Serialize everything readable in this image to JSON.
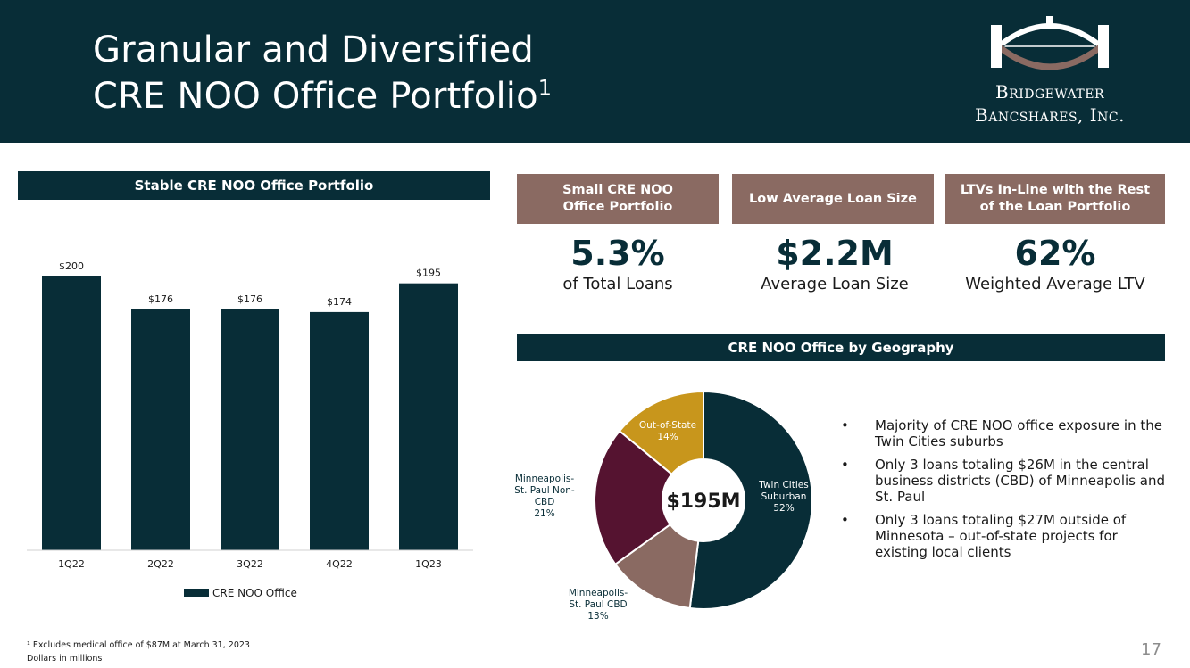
{
  "header": {
    "title_line1": "Granular and Diversified",
    "title_line2": "CRE NOO Office Portfolio",
    "title_sup": "1",
    "logo_line1": "Bridgewater",
    "logo_line2": "Bancshares, Inc."
  },
  "left_panel": {
    "title": "Stable CRE NOO Office Portfolio"
  },
  "kpis": [
    {
      "heading": "Small CRE NOO Office Portfolio",
      "value": "5.3%",
      "label": "of Total Loans"
    },
    {
      "heading": "Low Average Loan Size",
      "value": "$2.2M",
      "label": "Average Loan Size"
    },
    {
      "heading": "LTVs In-Line with the Rest of the Loan Portfolio",
      "value": "62%",
      "label": "Weighted Average LTV"
    }
  ],
  "geo_panel": {
    "title": "CRE NOO Office by Geography",
    "center_label": "$195M",
    "bullets": [
      "Majority of CRE NOO office exposure in the Twin Cities suburbs",
      "Only 3 loans totaling $26M in the central business districts (CBD) of Minneapolis and St. Paul",
      "Only 3 loans totaling $27M outside of Minnesota – out-of-state projects for existing local clients"
    ]
  },
  "chart_data": [
    {
      "type": "bar",
      "title": "Stable CRE NOO Office Portfolio",
      "categories": [
        "1Q22",
        "2Q22",
        "3Q22",
        "4Q22",
        "1Q23"
      ],
      "values": [
        200,
        176,
        176,
        174,
        195
      ],
      "data_labels": [
        "$200",
        "$176",
        "$176",
        "$174",
        "$195"
      ],
      "series_name": "CRE NOO Office",
      "ylim": [
        0,
        200
      ],
      "legend": "bottom",
      "color": "#082d37"
    },
    {
      "type": "pie",
      "title": "CRE NOO Office by Geography",
      "center_label": "$195M",
      "slices": [
        {
          "label": "Twin Cities Suburban",
          "display": [
            "Twin Cities",
            "Suburban",
            "52%"
          ],
          "value": 52,
          "color": "#082d37",
          "text_color": "#ffffff"
        },
        {
          "label": "Minneapolis-St. Paul CBD",
          "display": [
            "Minneapolis-",
            "St. Paul CBD",
            "13%"
          ],
          "value": 13,
          "color": "#8a6a62",
          "text_color": "#082d37"
        },
        {
          "label": "Minneapolis-St. Paul Non-CBD",
          "display": [
            "Minneapolis-",
            "St. Paul Non-",
            "CBD",
            "21%"
          ],
          "value": 21,
          "color": "#551330",
          "text_color": "#082d37"
        },
        {
          "label": "Out-of-State",
          "display": [
            "Out-of-State",
            "14%"
          ],
          "value": 14,
          "color": "#c8961c",
          "text_color": "#ffffff"
        }
      ]
    }
  ],
  "footnote": {
    "line1": "¹ Excludes medical office of $87M at March 31, 2023",
    "line2": "Dollars in millions"
  },
  "page_number": "17",
  "colors": {
    "navy": "#082d37",
    "taupe": "#8a6a62",
    "plum": "#551330",
    "gold": "#c8961c"
  }
}
